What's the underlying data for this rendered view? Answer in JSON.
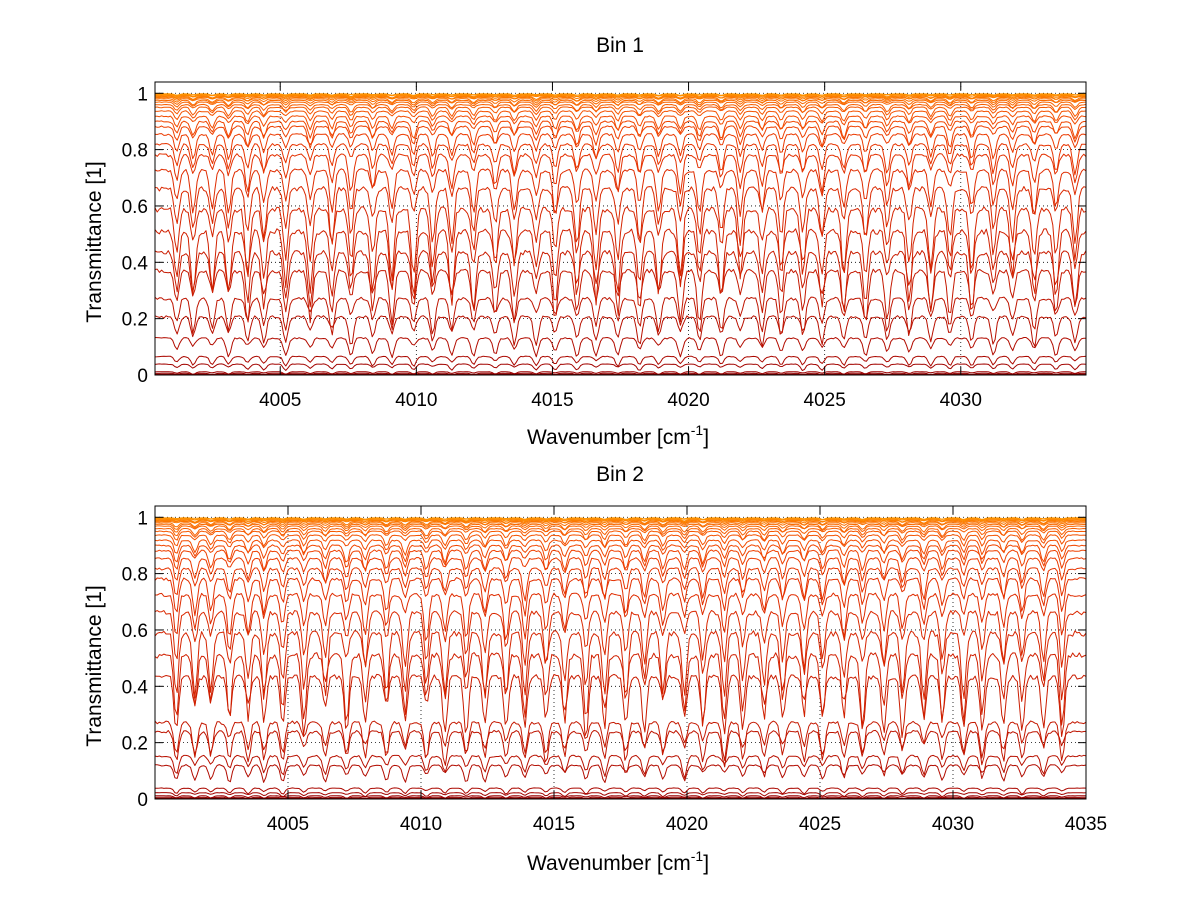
{
  "chart_data": [
    {
      "type": "line",
      "title": "Bin 1",
      "xlabel": "Wavenumber [cm",
      "xlabel_sup": "-1",
      "xlabel_end": "]",
      "ylabel": "Transmittance [1]",
      "xlim": [
        4000.4,
        4034.6
      ],
      "ylim": [
        0,
        1.04
      ],
      "xticks": [
        4005,
        4010,
        4015,
        4020,
        4025,
        4030
      ],
      "xtick_labels": [
        "4005",
        "4010",
        "4015",
        "4020",
        "4025",
        "4030"
      ],
      "yticks": [
        0,
        0.2,
        0.4,
        0.6,
        0.8,
        1
      ],
      "ytick_labels": [
        "0",
        "0.2",
        "0.4",
        "0.6",
        "0.8",
        "1"
      ],
      "grid": true,
      "series_baselines": [
        0.0,
        0.005,
        0.01,
        0.035,
        0.06,
        0.12,
        0.19,
        0.25,
        0.34,
        0.4,
        0.47,
        0.55,
        0.63,
        0.7,
        0.76,
        0.8,
        0.84,
        0.87,
        0.89,
        0.91,
        0.93,
        0.945,
        0.955,
        0.965,
        0.972,
        0.978,
        0.983,
        0.987,
        0.99,
        0.993,
        0.995,
        0.997
      ],
      "colors": [
        "#8b0000",
        "#930000",
        "#9b0000",
        "#a30400",
        "#ab0800",
        "#b20c00",
        "#b81000",
        "#be1400",
        "#c41800",
        "#ca1c00",
        "#d02000",
        "#d52400",
        "#da2800",
        "#df2c00",
        "#e33000",
        "#e73400",
        "#eb3a00",
        "#ee4000",
        "#f04600",
        "#f24c00",
        "#f45200",
        "#f65800",
        "#f75e00",
        "#f86400",
        "#f96a00",
        "#fa7000",
        "#fb7600",
        "#fb7c00",
        "#fc8200",
        "#fc8800",
        "#fd8e00",
        "#fd9400"
      ],
      "absorption_lines": [
        4001.2,
        4001.8,
        4002.5,
        4003.1,
        4003.8,
        4004.4,
        4005.2,
        4006.1,
        4006.9,
        4007.6,
        4008.4,
        4009.1,
        4009.9,
        4010.6,
        4011.3,
        4012.1,
        4012.9,
        4013.6,
        4014.4,
        4015.1,
        4015.9,
        4016.6,
        4017.4,
        4018.2,
        4018.9,
        4019.7,
        4020.4,
        4021.2,
        4021.9,
        4022.7,
        4023.4,
        4024.2,
        4024.9,
        4025.7,
        4026.5,
        4027.3,
        4028.1,
        4028.9,
        4029.6,
        4030.4,
        4031.2,
        4031.9,
        4032.7,
        4033.5,
        4034.2
      ]
    },
    {
      "type": "line",
      "title": "Bin 2",
      "xlabel": "Wavenumber [cm",
      "xlabel_sup": "-1",
      "xlabel_end": "]",
      "ylabel": "Transmittance [1]",
      "xlim": [
        4000.0,
        4035.0
      ],
      "ylim": [
        0,
        1.04
      ],
      "xticks": [
        4005,
        4010,
        4015,
        4020,
        4025,
        4030,
        4035
      ],
      "xtick_labels": [
        "4005",
        "4010",
        "4015",
        "4020",
        "4025",
        "4030",
        "4035"
      ],
      "yticks": [
        0,
        0.2,
        0.4,
        0.6,
        0.8,
        1
      ],
      "ytick_labels": [
        "0",
        "0.2",
        "0.4",
        "0.6",
        "0.8",
        "1"
      ],
      "grid": true,
      "series_baselines": [
        0.0,
        0.005,
        0.01,
        0.02,
        0.035,
        0.11,
        0.14,
        0.22,
        0.25,
        0.4,
        0.47,
        0.55,
        0.63,
        0.7,
        0.76,
        0.8,
        0.84,
        0.87,
        0.89,
        0.91,
        0.93,
        0.945,
        0.955,
        0.965,
        0.972,
        0.978,
        0.983,
        0.987,
        0.99,
        0.993,
        0.995,
        0.997
      ],
      "colors": [
        "#8b0000",
        "#930000",
        "#9b0000",
        "#a30400",
        "#ab0800",
        "#b20c00",
        "#b81000",
        "#be1400",
        "#c41800",
        "#ca1c00",
        "#d02000",
        "#d52400",
        "#da2800",
        "#df2c00",
        "#e33000",
        "#e73400",
        "#eb3a00",
        "#ee4000",
        "#f04600",
        "#f24c00",
        "#f45200",
        "#f65800",
        "#f75e00",
        "#f86400",
        "#f96a00",
        "#fa7000",
        "#fb7600",
        "#fb7c00",
        "#fc8200",
        "#fc8800",
        "#fd8e00",
        "#fd9400"
      ],
      "absorption_lines": [
        4000.8,
        4001.5,
        4002.1,
        4002.8,
        4003.5,
        4004.1,
        4004.8,
        4005.6,
        4006.4,
        4007.2,
        4007.9,
        4008.7,
        4009.4,
        4010.2,
        4010.9,
        4011.7,
        4012.4,
        4013.2,
        4013.9,
        4014.7,
        4015.4,
        4016.2,
        4016.9,
        4017.7,
        4018.4,
        4019.1,
        4019.9,
        4020.6,
        4021.4,
        4022.1,
        4022.9,
        4023.6,
        4024.4,
        4025.1,
        4025.9,
        4026.6,
        4027.4,
        4028.1,
        4028.9,
        4029.6,
        4030.4,
        4031.1,
        4031.9,
        4032.6,
        4033.4,
        4034.1
      ]
    }
  ]
}
